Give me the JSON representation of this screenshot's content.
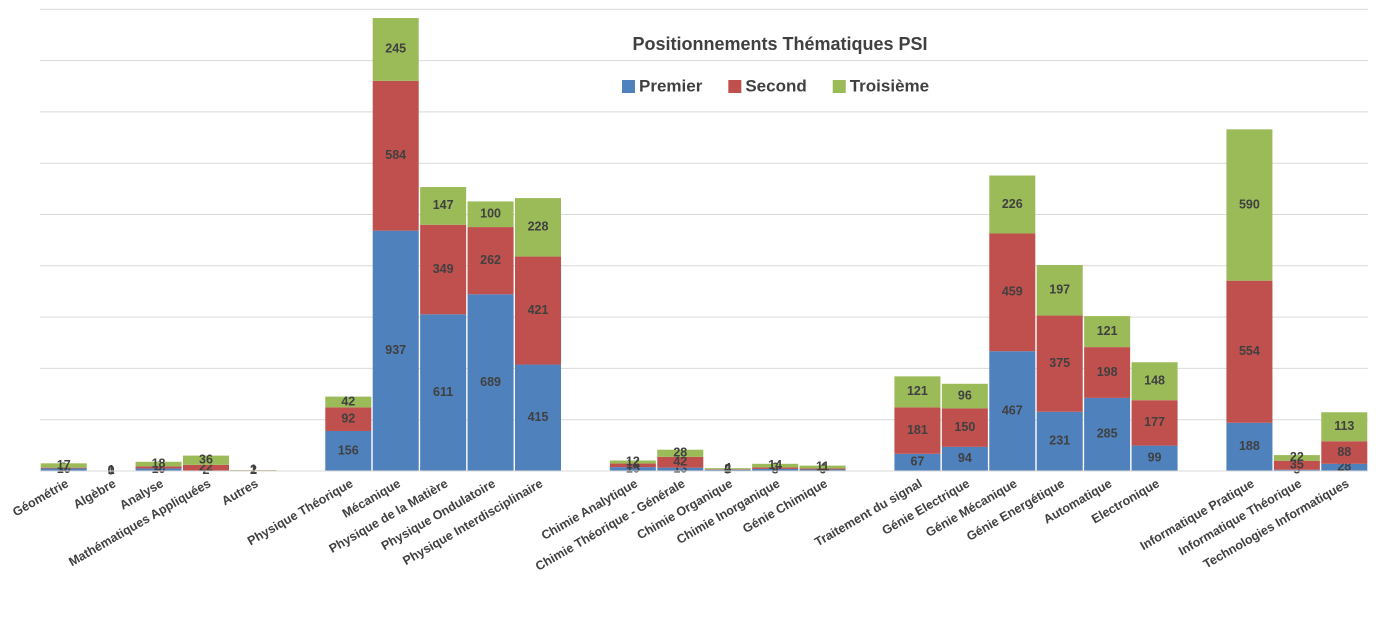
{
  "chart_data": {
    "type": "stacked_bar",
    "title": "Positionnements Thématiques PSI",
    "categories": [
      "Géométrie",
      "Algèbre",
      "Analyse",
      "Mathématiques Appliquées",
      "Autres",
      null,
      "Physique Théorique",
      "Mécanique",
      "Physique de la Matière",
      "Physique Ondulatoire",
      "Physique Interdisciplinaire",
      null,
      "Chimie Analytique",
      "Chimie Théorique - Générale",
      "Chimie Organique",
      "Chimie Inorganique",
      "Génie Chimique",
      null,
      "Traitement du signal",
      "Génie Electrique",
      "Génie Mécanique",
      "Génie Energétique",
      "Automatique",
      "Electronique",
      null,
      "Informatique Pratique",
      "Informatique Théorique",
      "Technologies Informatiques"
    ],
    "series": [
      {
        "name": "Premier",
        "color": "#4f81bd",
        "values": [
          10,
          0,
          10,
          2,
          2,
          null,
          156,
          937,
          611,
          689,
          415,
          null,
          15,
          13,
          5,
          8,
          6,
          null,
          67,
          94,
          467,
          231,
          285,
          99,
          null,
          188,
          5,
          28
        ]
      },
      {
        "name": "Second",
        "color": "#c0504d",
        "values": [
          3,
          0,
          8,
          22,
          1,
          null,
          92,
          584,
          349,
          262,
          421,
          null,
          14,
          42,
          2,
          6,
          4,
          null,
          181,
          150,
          459,
          375,
          198,
          177,
          null,
          554,
          35,
          88
        ]
      },
      {
        "name": "Troisième",
        "color": "#9bbb59",
        "values": [
          17,
          1,
          18,
          36,
          1,
          null,
          42,
          245,
          147,
          100,
          228,
          null,
          12,
          28,
          4,
          14,
          11,
          null,
          121,
          96,
          226,
          197,
          121,
          148,
          null,
          590,
          22,
          113
        ]
      }
    ],
    "ylim": [
      0,
      1800
    ],
    "yticks": [
      0,
      200,
      400,
      600,
      800,
      1000,
      1200,
      1400,
      1600,
      1800
    ],
    "grid": true,
    "legend": "top"
  }
}
